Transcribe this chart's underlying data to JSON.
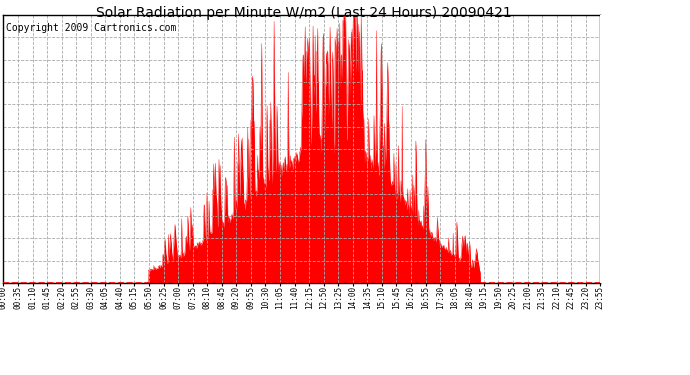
{
  "title": "Solar Radiation per Minute W/m2 (Last 24 Hours) 20090421",
  "copyright": "Copyright 2009 Cartronics.com",
  "background_color": "#ffffff",
  "plot_bg_color": "#ffffff",
  "fill_color": "#ff0000",
  "line_color": "#ff0000",
  "dashed_line_color": "#aaaaaa",
  "zero_line_color": "#ff0000",
  "yticks": [
    0.0,
    47.2,
    94.5,
    141.8,
    189.0,
    236.2,
    283.5,
    330.8,
    378.0,
    425.2,
    472.5,
    519.8,
    567.0
  ],
  "ymax": 567.0,
  "ymin": 0.0,
  "xtick_labels": [
    "00:00",
    "00:35",
    "01:10",
    "01:45",
    "02:20",
    "02:55",
    "03:30",
    "04:05",
    "04:40",
    "05:15",
    "05:50",
    "06:25",
    "07:00",
    "07:35",
    "08:10",
    "08:45",
    "09:20",
    "09:55",
    "10:30",
    "11:05",
    "11:40",
    "12:15",
    "12:50",
    "13:25",
    "14:00",
    "14:35",
    "15:10",
    "15:45",
    "16:20",
    "16:55",
    "17:30",
    "18:05",
    "18:40",
    "19:15",
    "19:50",
    "20:25",
    "21:00",
    "21:35",
    "22:10",
    "22:45",
    "23:20",
    "23:55"
  ],
  "grid_color": "#cccccc",
  "title_fontsize": 10,
  "copyright_fontsize": 7
}
